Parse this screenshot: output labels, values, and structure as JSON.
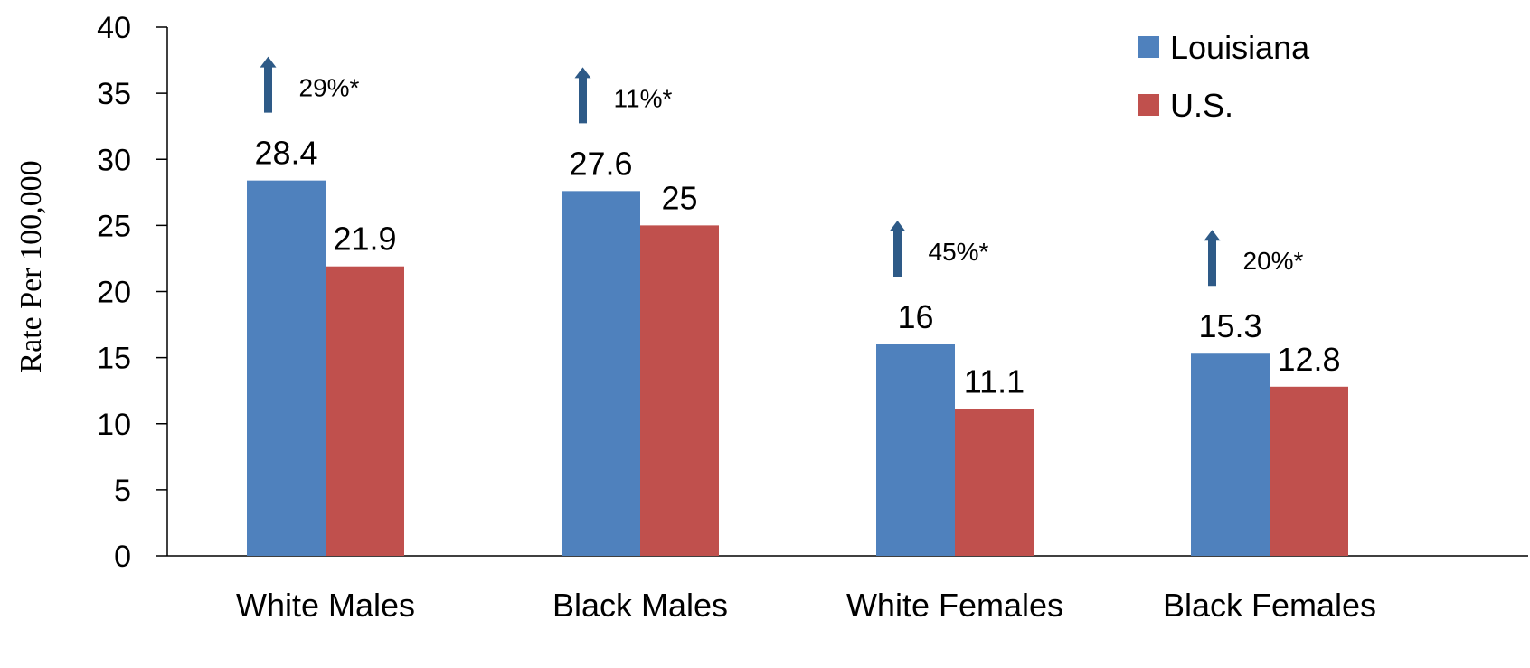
{
  "chart_data": {
    "type": "bar",
    "categories": [
      "White Males",
      "Black Males",
      "White Females",
      "Black Females"
    ],
    "series": [
      {
        "name": "Louisiana",
        "values": [
          28.4,
          27.6,
          16,
          15.3
        ],
        "color": "#4F81BD"
      },
      {
        "name": "U.S.",
        "values": [
          21.9,
          25,
          11.1,
          12.8
        ],
        "color": "#C0504D"
      }
    ],
    "data_labels": [
      [
        "28.4",
        "27.6",
        "16",
        "15.3"
      ],
      [
        "21.9",
        "25",
        "11.1",
        "12.8"
      ]
    ],
    "annotations": [
      {
        "category": "White Males",
        "text": "29%*",
        "direction": "up"
      },
      {
        "category": "Black Males",
        "text": "11%*",
        "direction": "up"
      },
      {
        "category": "White Females",
        "text": "45%*",
        "direction": "up"
      },
      {
        "category": "Black Females",
        "text": "20%*",
        "direction": "up"
      }
    ],
    "arrow_color": "#2E5A87",
    "ylabel": "Rate Per 100,000",
    "xlabel": "",
    "title": "",
    "ylim": [
      0,
      40
    ],
    "yticks": [
      0,
      5,
      10,
      15,
      20,
      25,
      30,
      35,
      40
    ],
    "grid": false,
    "legend_position": "top-right"
  }
}
